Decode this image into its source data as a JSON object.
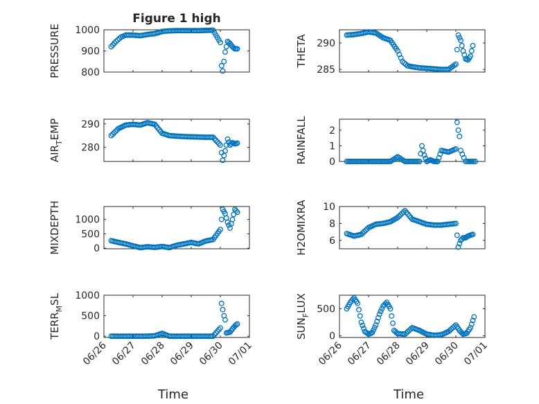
{
  "figure": {
    "title": "Figure 1 high",
    "marker_color": "#0072BD",
    "marker": "circle"
  },
  "chart_data": [
    {
      "type": "scatter",
      "id": "pressure",
      "title": "Figure 1 high",
      "ylabel": "PRESSURE",
      "ylabel_sub": "",
      "ylabel_rest": "",
      "xlabel": "",
      "xlim": [
        "06/26",
        "07/01"
      ],
      "ylim": [
        800,
        1000
      ],
      "yticks": [
        800,
        900,
        1000
      ],
      "show_xticklabels": false,
      "x": [
        "06/26 06:00",
        "06/26 10:00",
        "06/26 14:00",
        "06/26 18:00",
        "06/27 00:00",
        "06/27 06:00",
        "06/27 12:00",
        "06/27 18:00",
        "06/28 00:00",
        "06/28 06:00",
        "06/28 12:00",
        "06/28 18:00",
        "06/29 00:00",
        "06/29 06:00",
        "06/29 12:00",
        "06/29 18:00",
        "06/30 00:00",
        "06/30 01:00",
        "06/30 02:00",
        "06/30 03:00",
        "06/30 04:00",
        "06/30 06:00",
        "06/30 08:00",
        "06/30 10:00",
        "06/30 12:00",
        "06/30 14:00"
      ],
      "y": [
        920,
        945,
        965,
        975,
        975,
        972,
        978,
        982,
        992,
        995,
        996,
        996,
        996,
        996,
        997,
        998,
        940,
        830,
        805,
        850,
        895,
        945,
        935,
        920,
        910,
        910
      ]
    },
    {
      "type": "scatter",
      "id": "theta",
      "title": "",
      "ylabel": "THETA",
      "ylabel_sub": "",
      "ylabel_rest": "",
      "xlabel": "",
      "xlim": [
        "06/26",
        "07/01"
      ],
      "ylim": [
        284.5,
        292.5
      ],
      "yticks": [
        285,
        290
      ],
      "show_xticklabels": false,
      "x": [
        "06/26 06:00",
        "06/26 12:00",
        "06/26 18:00",
        "06/27 00:00",
        "06/27 06:00",
        "06/27 12:00",
        "06/27 18:00",
        "06/28 00:00",
        "06/28 04:00",
        "06/28 08:00",
        "06/28 12:00",
        "06/28 18:00",
        "06/29 00:00",
        "06/29 06:00",
        "06/29 12:00",
        "06/29 18:00",
        "06/30 00:00",
        "06/30 02:00",
        "06/30 04:00",
        "06/30 06:00",
        "06/30 08:00",
        "06/30 10:00",
        "06/30 12:00",
        "06/30 14:00"
      ],
      "y": [
        291.5,
        291.6,
        291.8,
        292.1,
        291.9,
        291.0,
        290.5,
        288.5,
        286.5,
        285.7,
        285.5,
        285.3,
        285.2,
        285.1,
        285.0,
        285.0,
        286.0,
        291.5,
        290.5,
        288.5,
        287.0,
        286.8,
        287.5,
        289.5
      ]
    },
    {
      "type": "scatter",
      "id": "air_temp",
      "title": "",
      "ylabel": "AIR",
      "ylabel_sub": "T",
      "ylabel_rest": "EMP",
      "xlabel": "",
      "xlim": [
        "06/26",
        "07/01"
      ],
      "ylim": [
        274,
        292
      ],
      "yticks": [
        280,
        290
      ],
      "show_xticklabels": false,
      "x": [
        "06/26 06:00",
        "06/26 12:00",
        "06/26 18:00",
        "06/27 00:00",
        "06/27 06:00",
        "06/27 12:00",
        "06/27 18:00",
        "06/28 00:00",
        "06/28 06:00",
        "06/28 12:00",
        "06/28 18:00",
        "06/29 00:00",
        "06/29 06:00",
        "06/29 12:00",
        "06/29 18:00",
        "06/30 00:00",
        "06/30 02:00",
        "06/30 04:00",
        "06/30 06:00",
        "06/30 08:00",
        "06/30 10:00",
        "06/30 12:00",
        "06/30 14:00"
      ],
      "y": [
        285,
        288,
        289.5,
        289.8,
        289.5,
        290.5,
        289.8,
        286,
        285,
        284.8,
        284.6,
        284.5,
        284.4,
        284.3,
        284.3,
        281,
        274.5,
        278.5,
        283.5,
        281,
        282,
        281.5,
        281.8
      ]
    },
    {
      "type": "scatter",
      "id": "rainfall",
      "title": "",
      "ylabel": "RAINFALL",
      "ylabel_sub": "",
      "ylabel_rest": "",
      "xlabel": "",
      "xlim": [
        "06/26",
        "07/01"
      ],
      "ylim": [
        0,
        2.7
      ],
      "yticks": [
        0,
        1,
        2
      ],
      "show_xticklabels": false,
      "x": [
        "06/26 06:00",
        "06/26 12:00",
        "06/26 18:00",
        "06/27 00:00",
        "06/27 06:00",
        "06/27 12:00",
        "06/27 18:00",
        "06/28 00:00",
        "06/28 06:00",
        "06/28 12:00",
        "06/28 18:00",
        "06/28 20:00",
        "06/28 22:00",
        "06/29 00:00",
        "06/29 03:00",
        "06/29 06:00",
        "06/29 09:00",
        "06/29 12:00",
        "06/29 18:00",
        "06/30 00:00",
        "06/30 01:00",
        "06/30 02:00",
        "06/30 03:00",
        "06/30 04:00",
        "06/30 08:00",
        "06/30 12:00",
        "06/30 16:00"
      ],
      "y": [
        0,
        0,
        0,
        0,
        0,
        0,
        0,
        0.3,
        0,
        0,
        0,
        1.0,
        0.4,
        0,
        0.1,
        0,
        0,
        0.7,
        0.6,
        0.8,
        2.5,
        2.0,
        1.6,
        0.7,
        0,
        0,
        0
      ]
    },
    {
      "type": "scatter",
      "id": "mixdepth",
      "title": "",
      "ylabel": "MIXDEPTH",
      "ylabel_sub": "",
      "ylabel_rest": "",
      "xlabel": "",
      "xlim": [
        "06/26",
        "07/01"
      ],
      "ylim": [
        -20,
        1450
      ],
      "yticks": [
        0,
        500,
        1000
      ],
      "show_xticklabels": false,
      "x": [
        "06/26 06:00",
        "06/26 12:00",
        "06/26 18:00",
        "06/27 00:00",
        "06/27 06:00",
        "06/27 12:00",
        "06/27 18:00",
        "06/28 00:00",
        "06/28 06:00",
        "06/28 12:00",
        "06/28 18:00",
        "06/29 00:00",
        "06/29 06:00",
        "06/29 12:00",
        "06/29 18:00",
        "06/30 00:00",
        "06/30 02:00",
        "06/30 04:00",
        "06/30 06:00",
        "06/30 08:00",
        "06/30 10:00",
        "06/30 12:00",
        "06/30 14:00"
      ],
      "y": [
        260,
        200,
        150,
        80,
        20,
        50,
        30,
        60,
        20,
        100,
        150,
        200,
        150,
        250,
        300,
        650,
        1350,
        1200,
        900,
        700,
        1000,
        1350,
        1250
      ]
    },
    {
      "type": "scatter",
      "id": "h2omixra",
      "title": "",
      "ylabel": "H2OMIXRA",
      "ylabel_sub": "",
      "ylabel_rest": "",
      "xlabel": "",
      "xlim": [
        "06/26",
        "07/01"
      ],
      "ylim": [
        5,
        10
      ],
      "yticks": [
        6,
        8,
        10
      ],
      "show_xticklabels": false,
      "x": [
        "06/26 06:00",
        "06/26 12:00",
        "06/26 18:00",
        "06/27 00:00",
        "06/27 06:00",
        "06/27 12:00",
        "06/27 18:00",
        "06/28 00:00",
        "06/28 06:00",
        "06/28 12:00",
        "06/28 18:00",
        "06/29 00:00",
        "06/29 06:00",
        "06/29 12:00",
        "06/29 18:00",
        "06/30 00:00",
        "06/30 02:00",
        "06/30 04:00",
        "06/30 06:00",
        "06/30 08:00",
        "06/30 10:00",
        "06/30 12:00",
        "06/30 14:00"
      ],
      "y": [
        6.8,
        6.5,
        6.7,
        7.5,
        7.9,
        8.0,
        8.2,
        8.7,
        9.5,
        8.5,
        8.2,
        7.9,
        7.8,
        7.8,
        7.9,
        8.0,
        5.2,
        6.0,
        6.3,
        6.3,
        6.5,
        6.6,
        6.7
      ]
    },
    {
      "type": "scatter",
      "id": "terr_msl",
      "title": "",
      "ylabel": "TERR",
      "ylabel_sub": "M",
      "ylabel_rest": "SL",
      "xlabel": "Time",
      "xlim": [
        "06/26",
        "07/01"
      ],
      "ylim": [
        -30,
        1000
      ],
      "yticks": [
        0,
        500,
        1000
      ],
      "show_xticklabels": true,
      "x": [
        "06/26 06:00",
        "06/26 12:00",
        "06/26 18:00",
        "06/27 00:00",
        "06/27 06:00",
        "06/27 12:00",
        "06/27 18:00",
        "06/28 00:00",
        "06/28 06:00",
        "06/28 12:00",
        "06/28 18:00",
        "06/29 00:00",
        "06/29 06:00",
        "06/29 12:00",
        "06/29 18:00",
        "06/30 00:00",
        "06/30 01:00",
        "06/30 02:00",
        "06/30 03:00",
        "06/30 04:00",
        "06/30 05:00",
        "06/30 08:00",
        "06/30 10:00",
        "06/30 12:00",
        "06/30 14:00"
      ],
      "y": [
        0,
        0,
        0,
        0,
        0,
        0,
        10,
        70,
        0,
        0,
        0,
        0,
        0,
        0,
        0,
        200,
        800,
        650,
        500,
        400,
        80,
        100,
        180,
        250,
        300
      ]
    },
    {
      "type": "scatter",
      "id": "sun_flux",
      "title": "",
      "ylabel": "SUN",
      "ylabel_sub": "F",
      "ylabel_rest": "LUX",
      "xlabel": "Time",
      "xlim": [
        "06/26",
        "07/01"
      ],
      "ylim": [
        -30,
        750
      ],
      "yticks": [
        0,
        500
      ],
      "show_xticklabels": true,
      "x": [
        "06/26 06:00",
        "06/26 09:00",
        "06/26 12:00",
        "06/26 15:00",
        "06/26 18:00",
        "06/26 21:00",
        "06/27 00:00",
        "06/27 03:00",
        "06/27 06:00",
        "06/27 09:00",
        "06/27 12:00",
        "06/27 15:00",
        "06/27 18:00",
        "06/27 21:00",
        "06/28 00:00",
        "06/28 06:00",
        "06/28 12:00",
        "06/28 18:00",
        "06/29 00:00",
        "06/29 06:00",
        "06/29 12:00",
        "06/29 18:00",
        "06/30 00:00",
        "06/30 03:00",
        "06/30 06:00",
        "06/30 09:00",
        "06/30 12:00",
        "06/30 15:00"
      ],
      "y": [
        500,
        620,
        700,
        600,
        250,
        80,
        30,
        60,
        200,
        400,
        550,
        620,
        500,
        100,
        40,
        30,
        150,
        100,
        30,
        10,
        20,
        80,
        200,
        100,
        30,
        50,
        150,
        350
      ]
    }
  ],
  "xticks": [
    "06/26",
    "06/27",
    "06/28",
    "06/29",
    "06/30",
    "07/01"
  ]
}
